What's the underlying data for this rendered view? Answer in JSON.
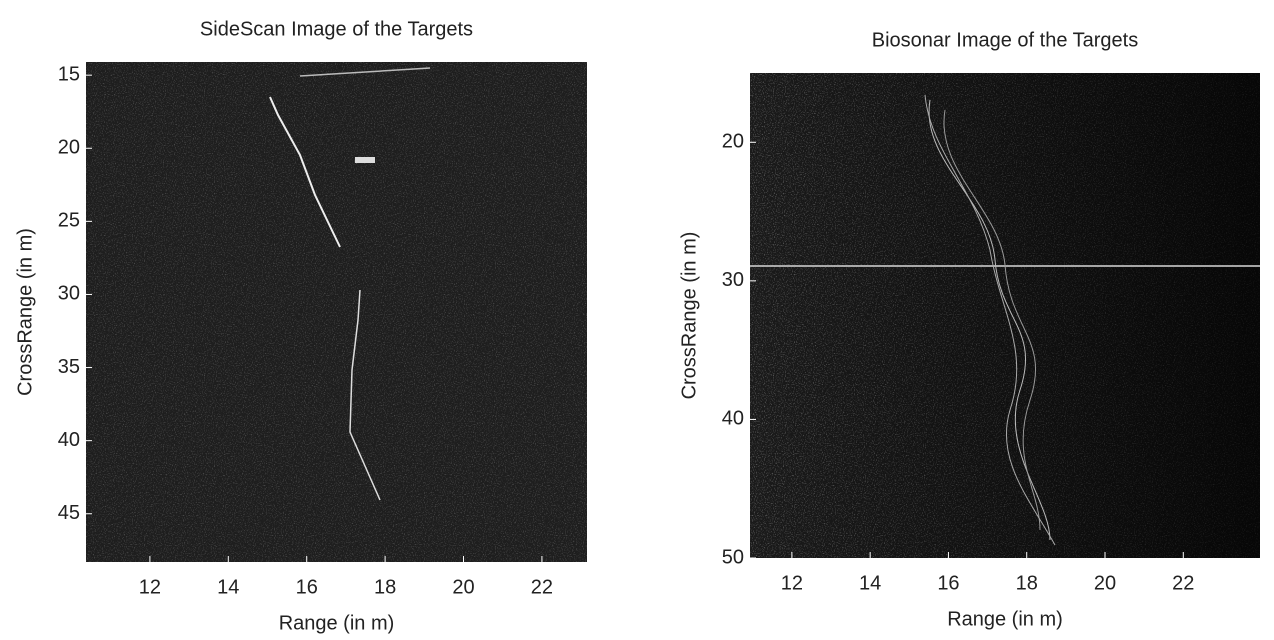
{
  "chart_data": [
    {
      "type": "image",
      "title": "SideScan Image of the Targets",
      "xlabel": "Range (in m)",
      "ylabel": "CrossRange (in m)",
      "xlim": [
        10.37,
        23.15
      ],
      "xticks": [
        12,
        14,
        16,
        18,
        20,
        22
      ],
      "ylim": [
        48.3,
        14.1
      ],
      "yticks": [
        15,
        20,
        25,
        30,
        35,
        40,
        45
      ]
    },
    {
      "type": "image",
      "title": "Biosonar Image of the Targets",
      "xlabel": "Range (in m)",
      "ylabel": "CrossRange (in m)",
      "xlim": [
        10.93,
        23.96
      ],
      "xticks": [
        12,
        14,
        16,
        18,
        20,
        22
      ],
      "ylim": [
        50,
        15
      ],
      "yticks": [
        20,
        30,
        40,
        50
      ]
    }
  ]
}
